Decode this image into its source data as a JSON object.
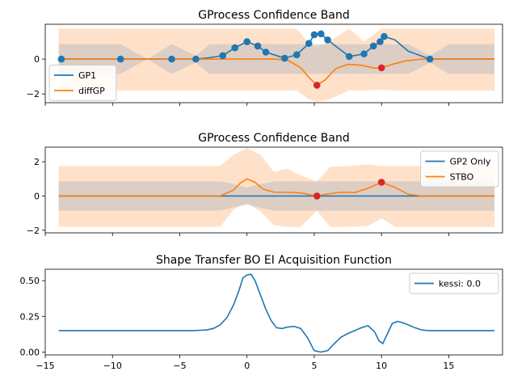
{
  "colors": {
    "blue": "#1f77b4",
    "orange": "#ff7f0e",
    "red": "#d62728",
    "gray_band": "#c8c8c8",
    "orange_band": "#ffdcbf"
  },
  "chart_data": [
    {
      "type": "line",
      "title": "GProcess Confidence Band",
      "xlim": [
        -15,
        19
      ],
      "ylim": [
        -2.5,
        2.0
      ],
      "yticks": [
        -2,
        0
      ],
      "x_tick_labels_visible": false,
      "legend": {
        "placement": "center-left",
        "entries": [
          "GP1",
          "diffGP"
        ]
      },
      "gp1_observations_x": [
        -13.8,
        -9.4,
        -5.6,
        -3.8,
        -1.8,
        -0.9,
        0.0,
        0.8,
        1.4,
        2.8,
        3.7,
        4.6,
        5.0,
        5.5,
        6.0,
        7.6,
        8.7,
        9.4,
        9.9,
        10.2,
        13.6
      ],
      "gp1_observations_y": [
        0.0,
        0.0,
        0.0,
        0.0,
        0.2,
        0.65,
        1.0,
        0.75,
        0.4,
        0.05,
        0.25,
        0.9,
        1.4,
        1.45,
        1.1,
        0.15,
        0.3,
        0.75,
        1.0,
        1.3,
        0.0
      ],
      "diffgp_observations_x": [
        5.2,
        10.0
      ],
      "diffgp_observations_y": [
        -1.5,
        -0.5
      ],
      "gp1_curve_x": [
        -14,
        -9.4,
        -7.4,
        -5.6,
        -3.8,
        -2.8,
        -1.8,
        -0.9,
        0,
        0.8,
        1.4,
        2.8,
        3.7,
        4.6,
        5.0,
        5.5,
        6.0,
        7.6,
        8.7,
        9.4,
        9.9,
        10.2,
        11.0,
        12.0,
        13.6,
        18.4
      ],
      "gp1_curve_y": [
        0,
        0,
        0,
        0,
        0,
        0.08,
        0.2,
        0.65,
        1.0,
        0.75,
        0.4,
        0.05,
        0.25,
        0.9,
        1.4,
        1.45,
        1.1,
        0.15,
        0.3,
        0.75,
        1.0,
        1.3,
        1.1,
        0.45,
        0,
        0
      ],
      "diffgp_curve_x": [
        -14,
        2.0,
        3.0,
        4.0,
        4.6,
        5.2,
        5.8,
        6.6,
        7.5,
        8.5,
        9.5,
        10.0,
        10.8,
        11.8,
        13.0,
        18.4
      ],
      "diffgp_curve_y": [
        0,
        0,
        -0.05,
        -0.5,
        -1.05,
        -1.5,
        -1.2,
        -0.55,
        -0.3,
        -0.35,
        -0.52,
        -0.5,
        -0.3,
        -0.1,
        0,
        0
      ],
      "band_x": [
        -14,
        -9.4,
        -7.4,
        -5.6,
        -3.8,
        -2.8,
        0,
        2.8,
        3.7,
        4.6,
        5.2,
        6.0,
        7.6,
        8.7,
        10.0,
        11.0,
        12.0,
        13.6,
        15.0,
        16.5,
        18.4
      ],
      "gray_band_half_width": [
        0.85,
        0.85,
        0.0,
        0.85,
        0.2,
        0.85,
        0.85,
        0.85,
        0.85,
        0.85,
        0.85,
        0.85,
        0.85,
        0.85,
        0.85,
        0.85,
        0.85,
        0.2,
        0.85,
        0.85,
        0.85
      ],
      "orange_band_upper": [
        1.75,
        1.75,
        1.75,
        1.75,
        1.75,
        1.75,
        1.75,
        1.75,
        1.75,
        0.9,
        0.7,
        0.95,
        1.75,
        1.0,
        1.75,
        1.75,
        1.75,
        1.75,
        1.75,
        1.75,
        1.75
      ],
      "orange_band_lower": [
        -1.8,
        -1.8,
        -1.8,
        -1.8,
        -1.8,
        -1.8,
        -1.8,
        -1.8,
        -1.8,
        -2.3,
        -2.45,
        -2.35,
        -1.8,
        -1.8,
        -1.75,
        -1.8,
        -1.8,
        -1.8,
        -1.8,
        -1.8,
        -1.8
      ]
    },
    {
      "type": "line",
      "title": "GProcess Confidence Band",
      "xlim": [
        -15,
        19
      ],
      "ylim": [
        -2.15,
        2.85
      ],
      "yticks": [
        -2,
        0,
        2
      ],
      "x_tick_labels_visible": false,
      "legend": {
        "placement": "top-right",
        "entries": [
          "GP2 Only",
          "STBO"
        ]
      },
      "observations_x": [
        5.2,
        10.0
      ],
      "observations_y": [
        0.0,
        0.8
      ],
      "gp2_curve_x": [
        -14,
        18.4
      ],
      "gp2_curve_y": [
        0,
        0
      ],
      "stbo_curve_x": [
        -14,
        -2.0,
        -1.0,
        -0.5,
        0,
        0.6,
        1.2,
        2.0,
        3.0,
        4.0,
        5.2,
        6.0,
        7.0,
        8.0,
        9.0,
        10.0,
        11.0,
        12.0,
        13.0,
        18.4
      ],
      "stbo_curve_y": [
        0,
        0,
        0.35,
        0.75,
        1.0,
        0.8,
        0.4,
        0.22,
        0.22,
        0.18,
        0.0,
        0.12,
        0.22,
        0.2,
        0.45,
        0.8,
        0.5,
        0.1,
        0,
        0
      ],
      "band_x": [
        -14,
        -2.0,
        -1.0,
        0,
        1.0,
        2.0,
        3.0,
        4.0,
        5.2,
        6.2,
        7.5,
        9.0,
        10.0,
        11.0,
        12.5,
        14.0,
        18.4
      ],
      "gray_band_upper": [
        0.85,
        0.85,
        0.7,
        0.5,
        0.7,
        0.85,
        0.85,
        0.85,
        0.85,
        0.85,
        0.85,
        0.85,
        0.85,
        0.85,
        0.85,
        0.85,
        0.85
      ],
      "gray_band_lower": [
        -0.85,
        -0.85,
        -0.65,
        -0.5,
        -0.7,
        -0.85,
        -0.85,
        -0.85,
        -0.85,
        -0.85,
        -0.85,
        -0.85,
        -0.85,
        -0.85,
        -0.85,
        -0.85,
        -0.85
      ],
      "orange_band_upper": [
        1.75,
        1.75,
        2.4,
        2.8,
        2.4,
        1.4,
        1.6,
        1.2,
        0.85,
        1.7,
        1.75,
        1.85,
        1.75,
        1.75,
        1.75,
        1.75,
        1.75
      ],
      "orange_band_lower": [
        -1.8,
        -1.8,
        -0.8,
        -0.4,
        -0.9,
        -1.7,
        -1.8,
        -1.8,
        -0.85,
        -1.8,
        -1.8,
        -1.75,
        -1.3,
        -1.8,
        -1.8,
        -1.8,
        -1.8
      ]
    },
    {
      "type": "line",
      "title": "Shape Transfer BO EI Acquisition Function",
      "xlim": [
        -15,
        19
      ],
      "ylim": [
        -0.02,
        0.58
      ],
      "xticks": [
        -15,
        -10,
        -5,
        0,
        5,
        10,
        15
      ],
      "yticks": [
        0.0,
        0.25,
        0.5
      ],
      "ytick_labels": [
        "0.00",
        "0.25",
        "0.50"
      ],
      "legend": {
        "placement": "top-right",
        "entries": [
          "kessi: 0.0"
        ]
      },
      "series": [
        {
          "name": "kessi: 0.0",
          "x": [
            -14,
            -4.0,
            -3.0,
            -2.5,
            -2.0,
            -1.5,
            -1.0,
            -0.6,
            -0.3,
            0.0,
            0.3,
            0.6,
            1.0,
            1.4,
            1.8,
            2.2,
            2.6,
            3.0,
            3.5,
            4.0,
            4.5,
            5.0,
            5.5,
            6.0,
            6.5,
            7.0,
            7.5,
            8.0,
            8.5,
            9.0,
            9.5,
            9.8,
            10.1,
            10.4,
            10.8,
            11.2,
            11.6,
            12.0,
            12.5,
            13.0,
            13.5,
            14.0,
            18.4
          ],
          "y": [
            0.15,
            0.15,
            0.155,
            0.165,
            0.19,
            0.24,
            0.33,
            0.43,
            0.52,
            0.54,
            0.545,
            0.5,
            0.4,
            0.3,
            0.22,
            0.17,
            0.165,
            0.175,
            0.18,
            0.165,
            0.1,
            0.01,
            0.0,
            0.01,
            0.06,
            0.105,
            0.13,
            0.15,
            0.17,
            0.185,
            0.14,
            0.08,
            0.06,
            0.12,
            0.2,
            0.215,
            0.205,
            0.19,
            0.17,
            0.155,
            0.15,
            0.15,
            0.15
          ]
        }
      ]
    }
  ]
}
